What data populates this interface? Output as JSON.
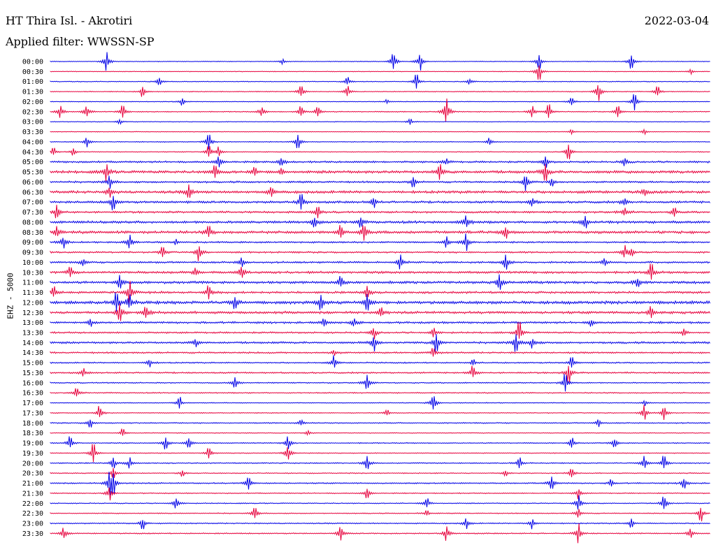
{
  "header": {
    "station": "HT Thira Isl. - Akrotiri",
    "date": "2022-03-04",
    "filter": "Applied filter: WWSSN-SP"
  },
  "chart_data": {
    "type": "line",
    "ylabel": "EHZ - 5000",
    "colors": [
      "#0000e6",
      "#e6003c"
    ],
    "rows": [
      {
        "label": "00:00",
        "color": "#0000e6",
        "noise": 0.4,
        "events": [
          {
            "t": 0.085,
            "a": 14
          },
          {
            "t": 0.352,
            "a": 4
          },
          {
            "t": 0.52,
            "a": 14
          },
          {
            "t": 0.56,
            "a": 14
          },
          {
            "t": 0.74,
            "a": 10
          },
          {
            "t": 0.88,
            "a": 12
          }
        ]
      },
      {
        "label": "00:30",
        "color": "#e6003c",
        "noise": 0.4,
        "events": [
          {
            "t": 0.74,
            "a": 12
          },
          {
            "t": 0.97,
            "a": 4
          }
        ]
      },
      {
        "label": "01:00",
        "color": "#0000e6",
        "noise": 0.5,
        "events": [
          {
            "t": 0.165,
            "a": 6
          },
          {
            "t": 0.45,
            "a": 6
          },
          {
            "t": 0.555,
            "a": 10
          },
          {
            "t": 0.635,
            "a": 5
          }
        ]
      },
      {
        "label": "01:30",
        "color": "#e6003c",
        "noise": 0.5,
        "events": [
          {
            "t": 0.14,
            "a": 7
          },
          {
            "t": 0.38,
            "a": 10
          },
          {
            "t": 0.45,
            "a": 8
          },
          {
            "t": 0.83,
            "a": 16
          },
          {
            "t": 0.92,
            "a": 8
          }
        ]
      },
      {
        "label": "02:00",
        "color": "#0000e6",
        "noise": 0.4,
        "events": [
          {
            "t": 0.2,
            "a": 6
          },
          {
            "t": 0.51,
            "a": 3
          },
          {
            "t": 0.79,
            "a": 7
          },
          {
            "t": 0.885,
            "a": 12
          }
        ]
      },
      {
        "label": "02:30",
        "color": "#e6003c",
        "noise": 0.6,
        "events": [
          {
            "t": 0.015,
            "a": 10
          },
          {
            "t": 0.055,
            "a": 10
          },
          {
            "t": 0.11,
            "a": 9
          },
          {
            "t": 0.32,
            "a": 8
          },
          {
            "t": 0.38,
            "a": 9
          },
          {
            "t": 0.405,
            "a": 9
          },
          {
            "t": 0.6,
            "a": 24
          },
          {
            "t": 0.73,
            "a": 8
          },
          {
            "t": 0.755,
            "a": 10
          },
          {
            "t": 0.86,
            "a": 9
          }
        ]
      },
      {
        "label": "03:00",
        "color": "#0000e6",
        "noise": 0.4,
        "events": [
          {
            "t": 0.105,
            "a": 4
          },
          {
            "t": 0.545,
            "a": 4
          }
        ]
      },
      {
        "label": "03:30",
        "color": "#e6003c",
        "noise": 0.4,
        "events": [
          {
            "t": 0.79,
            "a": 3
          },
          {
            "t": 0.9,
            "a": 4
          }
        ]
      },
      {
        "label": "04:00",
        "color": "#0000e6",
        "noise": 0.5,
        "events": [
          {
            "t": 0.055,
            "a": 8
          },
          {
            "t": 0.24,
            "a": 12
          },
          {
            "t": 0.375,
            "a": 10
          },
          {
            "t": 0.665,
            "a": 6
          }
        ]
      },
      {
        "label": "04:30",
        "color": "#e6003c",
        "noise": 0.5,
        "events": [
          {
            "t": 0.005,
            "a": 6
          },
          {
            "t": 0.035,
            "a": 5
          },
          {
            "t": 0.24,
            "a": 9
          },
          {
            "t": 0.255,
            "a": 8
          },
          {
            "t": 0.785,
            "a": 12
          }
        ]
      },
      {
        "label": "05:00",
        "color": "#0000e6",
        "noise": 1.1,
        "events": [
          {
            "t": 0.255,
            "a": 9
          },
          {
            "t": 0.35,
            "a": 8
          },
          {
            "t": 0.6,
            "a": 5
          },
          {
            "t": 0.75,
            "a": 8
          },
          {
            "t": 0.87,
            "a": 6
          }
        ]
      },
      {
        "label": "05:30",
        "color": "#e6003c",
        "noise": 1.6,
        "events": [
          {
            "t": 0.085,
            "a": 12
          },
          {
            "t": 0.25,
            "a": 10
          },
          {
            "t": 0.31,
            "a": 5
          },
          {
            "t": 0.35,
            "a": 5
          },
          {
            "t": 0.59,
            "a": 10
          },
          {
            "t": 0.75,
            "a": 12
          }
        ]
      },
      {
        "label": "06:00",
        "color": "#0000e6",
        "noise": 1.1,
        "events": [
          {
            "t": 0.09,
            "a": 10
          },
          {
            "t": 0.55,
            "a": 8
          },
          {
            "t": 0.72,
            "a": 12
          },
          {
            "t": 0.76,
            "a": 6
          }
        ]
      },
      {
        "label": "06:30",
        "color": "#e6003c",
        "noise": 1.6,
        "events": [
          {
            "t": 0.09,
            "a": 8
          },
          {
            "t": 0.21,
            "a": 10
          },
          {
            "t": 0.335,
            "a": 6
          },
          {
            "t": 0.9,
            "a": 6
          }
        ]
      },
      {
        "label": "07:00",
        "color": "#0000e6",
        "noise": 1.3,
        "events": [
          {
            "t": 0.095,
            "a": 12
          },
          {
            "t": 0.38,
            "a": 10
          },
          {
            "t": 0.49,
            "a": 8
          },
          {
            "t": 0.73,
            "a": 8
          },
          {
            "t": 0.87,
            "a": 6
          }
        ]
      },
      {
        "label": "07:30",
        "color": "#e6003c",
        "noise": 1.2,
        "events": [
          {
            "t": 0.01,
            "a": 10
          },
          {
            "t": 0.405,
            "a": 8
          },
          {
            "t": 0.87,
            "a": 7
          },
          {
            "t": 0.945,
            "a": 6
          }
        ]
      },
      {
        "label": "08:00",
        "color": "#0000e6",
        "noise": 1.5,
        "events": [
          {
            "t": 0.4,
            "a": 10
          },
          {
            "t": 0.47,
            "a": 7
          },
          {
            "t": 0.63,
            "a": 10
          },
          {
            "t": 0.81,
            "a": 8
          }
        ]
      },
      {
        "label": "08:30",
        "color": "#e6003c",
        "noise": 1.6,
        "events": [
          {
            "t": 0.01,
            "a": 8
          },
          {
            "t": 0.24,
            "a": 8
          },
          {
            "t": 0.44,
            "a": 10
          },
          {
            "t": 0.475,
            "a": 12
          },
          {
            "t": 0.69,
            "a": 8
          }
        ]
      },
      {
        "label": "09:00",
        "color": "#0000e6",
        "noise": 1.0,
        "events": [
          {
            "t": 0.02,
            "a": 10
          },
          {
            "t": 0.12,
            "a": 12
          },
          {
            "t": 0.19,
            "a": 4
          },
          {
            "t": 0.6,
            "a": 8
          },
          {
            "t": 0.63,
            "a": 12
          }
        ]
      },
      {
        "label": "09:30",
        "color": "#e6003c",
        "noise": 1.0,
        "events": [
          {
            "t": 0.17,
            "a": 7
          },
          {
            "t": 0.225,
            "a": 14
          },
          {
            "t": 0.87,
            "a": 10
          },
          {
            "t": 0.88,
            "a": 6
          }
        ]
      },
      {
        "label": "10:00",
        "color": "#0000e6",
        "noise": 1.1,
        "events": [
          {
            "t": 0.05,
            "a": 5
          },
          {
            "t": 0.29,
            "a": 8
          },
          {
            "t": 0.53,
            "a": 12
          },
          {
            "t": 0.69,
            "a": 10
          },
          {
            "t": 0.84,
            "a": 6
          }
        ]
      },
      {
        "label": "10:30",
        "color": "#e6003c",
        "noise": 1.4,
        "events": [
          {
            "t": 0.03,
            "a": 7
          },
          {
            "t": 0.22,
            "a": 6
          },
          {
            "t": 0.29,
            "a": 10
          },
          {
            "t": 0.91,
            "a": 12
          }
        ]
      },
      {
        "label": "11:00",
        "color": "#0000e6",
        "noise": 1.5,
        "events": [
          {
            "t": 0.105,
            "a": 9
          },
          {
            "t": 0.44,
            "a": 8
          },
          {
            "t": 0.68,
            "a": 10
          },
          {
            "t": 0.89,
            "a": 7
          }
        ]
      },
      {
        "label": "11:30",
        "color": "#e6003c",
        "noise": 1.3,
        "events": [
          {
            "t": 0.005,
            "a": 8
          },
          {
            "t": 0.12,
            "a": 18
          },
          {
            "t": 0.24,
            "a": 9
          },
          {
            "t": 0.48,
            "a": 9
          }
        ]
      },
      {
        "label": "12:00",
        "color": "#0000e6",
        "noise": 1.8,
        "events": [
          {
            "t": 0.1,
            "a": 14
          },
          {
            "t": 0.12,
            "a": 12
          },
          {
            "t": 0.28,
            "a": 8
          },
          {
            "t": 0.41,
            "a": 10
          },
          {
            "t": 0.48,
            "a": 14
          }
        ]
      },
      {
        "label": "12:30",
        "color": "#e6003c",
        "noise": 1.5,
        "events": [
          {
            "t": 0.105,
            "a": 12
          },
          {
            "t": 0.145,
            "a": 10
          },
          {
            "t": 0.5,
            "a": 8
          },
          {
            "t": 0.91,
            "a": 8
          }
        ]
      },
      {
        "label": "13:00",
        "color": "#0000e6",
        "noise": 1.2,
        "events": [
          {
            "t": 0.06,
            "a": 5
          },
          {
            "t": 0.415,
            "a": 6
          },
          {
            "t": 0.46,
            "a": 7
          },
          {
            "t": 0.82,
            "a": 5
          }
        ]
      },
      {
        "label": "13:30",
        "color": "#e6003c",
        "noise": 1.0,
        "events": [
          {
            "t": 0.49,
            "a": 10
          },
          {
            "t": 0.58,
            "a": 6
          },
          {
            "t": 0.71,
            "a": 14
          },
          {
            "t": 0.96,
            "a": 6
          }
        ]
      },
      {
        "label": "14:00",
        "color": "#0000e6",
        "noise": 1.2,
        "events": [
          {
            "t": 0.22,
            "a": 6
          },
          {
            "t": 0.49,
            "a": 12
          },
          {
            "t": 0.585,
            "a": 14
          },
          {
            "t": 0.705,
            "a": 14
          },
          {
            "t": 0.73,
            "a": 8
          }
        ]
      },
      {
        "label": "14:30",
        "color": "#e6003c",
        "noise": 1.0,
        "events": [
          {
            "t": 0.43,
            "a": 4
          },
          {
            "t": 0.58,
            "a": 6
          }
        ]
      },
      {
        "label": "15:00",
        "color": "#0000e6",
        "noise": 0.8,
        "events": [
          {
            "t": 0.15,
            "a": 6
          },
          {
            "t": 0.43,
            "a": 10
          },
          {
            "t": 0.64,
            "a": 4
          },
          {
            "t": 0.79,
            "a": 8
          }
        ]
      },
      {
        "label": "15:30",
        "color": "#e6003c",
        "noise": 0.9,
        "events": [
          {
            "t": 0.05,
            "a": 6
          },
          {
            "t": 0.64,
            "a": 10
          },
          {
            "t": 0.785,
            "a": 14
          }
        ]
      },
      {
        "label": "16:00",
        "color": "#0000e6",
        "noise": 0.7,
        "events": [
          {
            "t": 0.28,
            "a": 8
          },
          {
            "t": 0.48,
            "a": 12
          },
          {
            "t": 0.78,
            "a": 14
          }
        ]
      },
      {
        "label": "16:30",
        "color": "#e6003c",
        "noise": 0.7,
        "events": [
          {
            "t": 0.04,
            "a": 8
          }
        ]
      },
      {
        "label": "17:00",
        "color": "#0000e6",
        "noise": 0.5,
        "events": [
          {
            "t": 0.195,
            "a": 8
          },
          {
            "t": 0.58,
            "a": 14
          },
          {
            "t": 0.9,
            "a": 4
          }
        ]
      },
      {
        "label": "17:30",
        "color": "#e6003c",
        "noise": 0.5,
        "events": [
          {
            "t": 0.075,
            "a": 10
          },
          {
            "t": 0.51,
            "a": 4
          },
          {
            "t": 0.9,
            "a": 12
          },
          {
            "t": 0.93,
            "a": 10
          }
        ]
      },
      {
        "label": "18:00",
        "color": "#0000e6",
        "noise": 0.7,
        "events": [
          {
            "t": 0.06,
            "a": 6
          },
          {
            "t": 0.38,
            "a": 4
          },
          {
            "t": 0.83,
            "a": 6
          }
        ]
      },
      {
        "label": "18:30",
        "color": "#e6003c",
        "noise": 0.5,
        "events": [
          {
            "t": 0.11,
            "a": 6
          },
          {
            "t": 0.39,
            "a": 4
          }
        ]
      },
      {
        "label": "19:00",
        "color": "#0000e6",
        "noise": 0.6,
        "events": [
          {
            "t": 0.03,
            "a": 10
          },
          {
            "t": 0.175,
            "a": 10
          },
          {
            "t": 0.21,
            "a": 10
          },
          {
            "t": 0.36,
            "a": 12
          },
          {
            "t": 0.79,
            "a": 8
          },
          {
            "t": 0.855,
            "a": 8
          }
        ]
      },
      {
        "label": "19:30",
        "color": "#e6003c",
        "noise": 0.5,
        "events": [
          {
            "t": 0.065,
            "a": 14
          },
          {
            "t": 0.24,
            "a": 8
          },
          {
            "t": 0.36,
            "a": 14
          }
        ]
      },
      {
        "label": "20:00",
        "color": "#0000e6",
        "noise": 0.7,
        "events": [
          {
            "t": 0.095,
            "a": 8
          },
          {
            "t": 0.12,
            "a": 8
          },
          {
            "t": 0.48,
            "a": 10
          },
          {
            "t": 0.71,
            "a": 8
          },
          {
            "t": 0.9,
            "a": 10
          },
          {
            "t": 0.93,
            "a": 10
          }
        ]
      },
      {
        "label": "20:30",
        "color": "#e6003c",
        "noise": 0.6,
        "events": [
          {
            "t": 0.095,
            "a": 8
          },
          {
            "t": 0.2,
            "a": 5
          },
          {
            "t": 0.69,
            "a": 5
          },
          {
            "t": 0.79,
            "a": 8
          }
        ]
      },
      {
        "label": "21:00",
        "color": "#0000e6",
        "noise": 0.8,
        "events": [
          {
            "t": 0.09,
            "a": 18
          },
          {
            "t": 0.095,
            "a": 14
          },
          {
            "t": 0.3,
            "a": 10
          },
          {
            "t": 0.76,
            "a": 10
          },
          {
            "t": 0.85,
            "a": 5
          },
          {
            "t": 0.96,
            "a": 8
          }
        ]
      },
      {
        "label": "21:30",
        "color": "#e6003c",
        "noise": 0.6,
        "events": [
          {
            "t": 0.09,
            "a": 10
          },
          {
            "t": 0.48,
            "a": 8
          },
          {
            "t": 0.8,
            "a": 8
          }
        ]
      },
      {
        "label": "22:00",
        "color": "#0000e6",
        "noise": 0.6,
        "events": [
          {
            "t": 0.19,
            "a": 10
          },
          {
            "t": 0.57,
            "a": 8
          },
          {
            "t": 0.8,
            "a": 14
          },
          {
            "t": 0.93,
            "a": 12
          }
        ]
      },
      {
        "label": "22:30",
        "color": "#e6003c",
        "noise": 0.6,
        "events": [
          {
            "t": 0.31,
            "a": 10
          },
          {
            "t": 0.57,
            "a": 4
          },
          {
            "t": 0.8,
            "a": 8
          },
          {
            "t": 0.985,
            "a": 12
          }
        ]
      },
      {
        "label": "23:00",
        "color": "#0000e6",
        "noise": 0.7,
        "events": [
          {
            "t": 0.14,
            "a": 8
          },
          {
            "t": 0.63,
            "a": 8
          },
          {
            "t": 0.73,
            "a": 8
          },
          {
            "t": 0.88,
            "a": 6
          }
        ]
      },
      {
        "label": "23:30",
        "color": "#e6003c",
        "noise": 0.7,
        "events": [
          {
            "t": 0.02,
            "a": 10
          },
          {
            "t": 0.44,
            "a": 10
          },
          {
            "t": 0.6,
            "a": 10
          },
          {
            "t": 0.8,
            "a": 14
          },
          {
            "t": 0.97,
            "a": 8
          }
        ]
      }
    ]
  }
}
